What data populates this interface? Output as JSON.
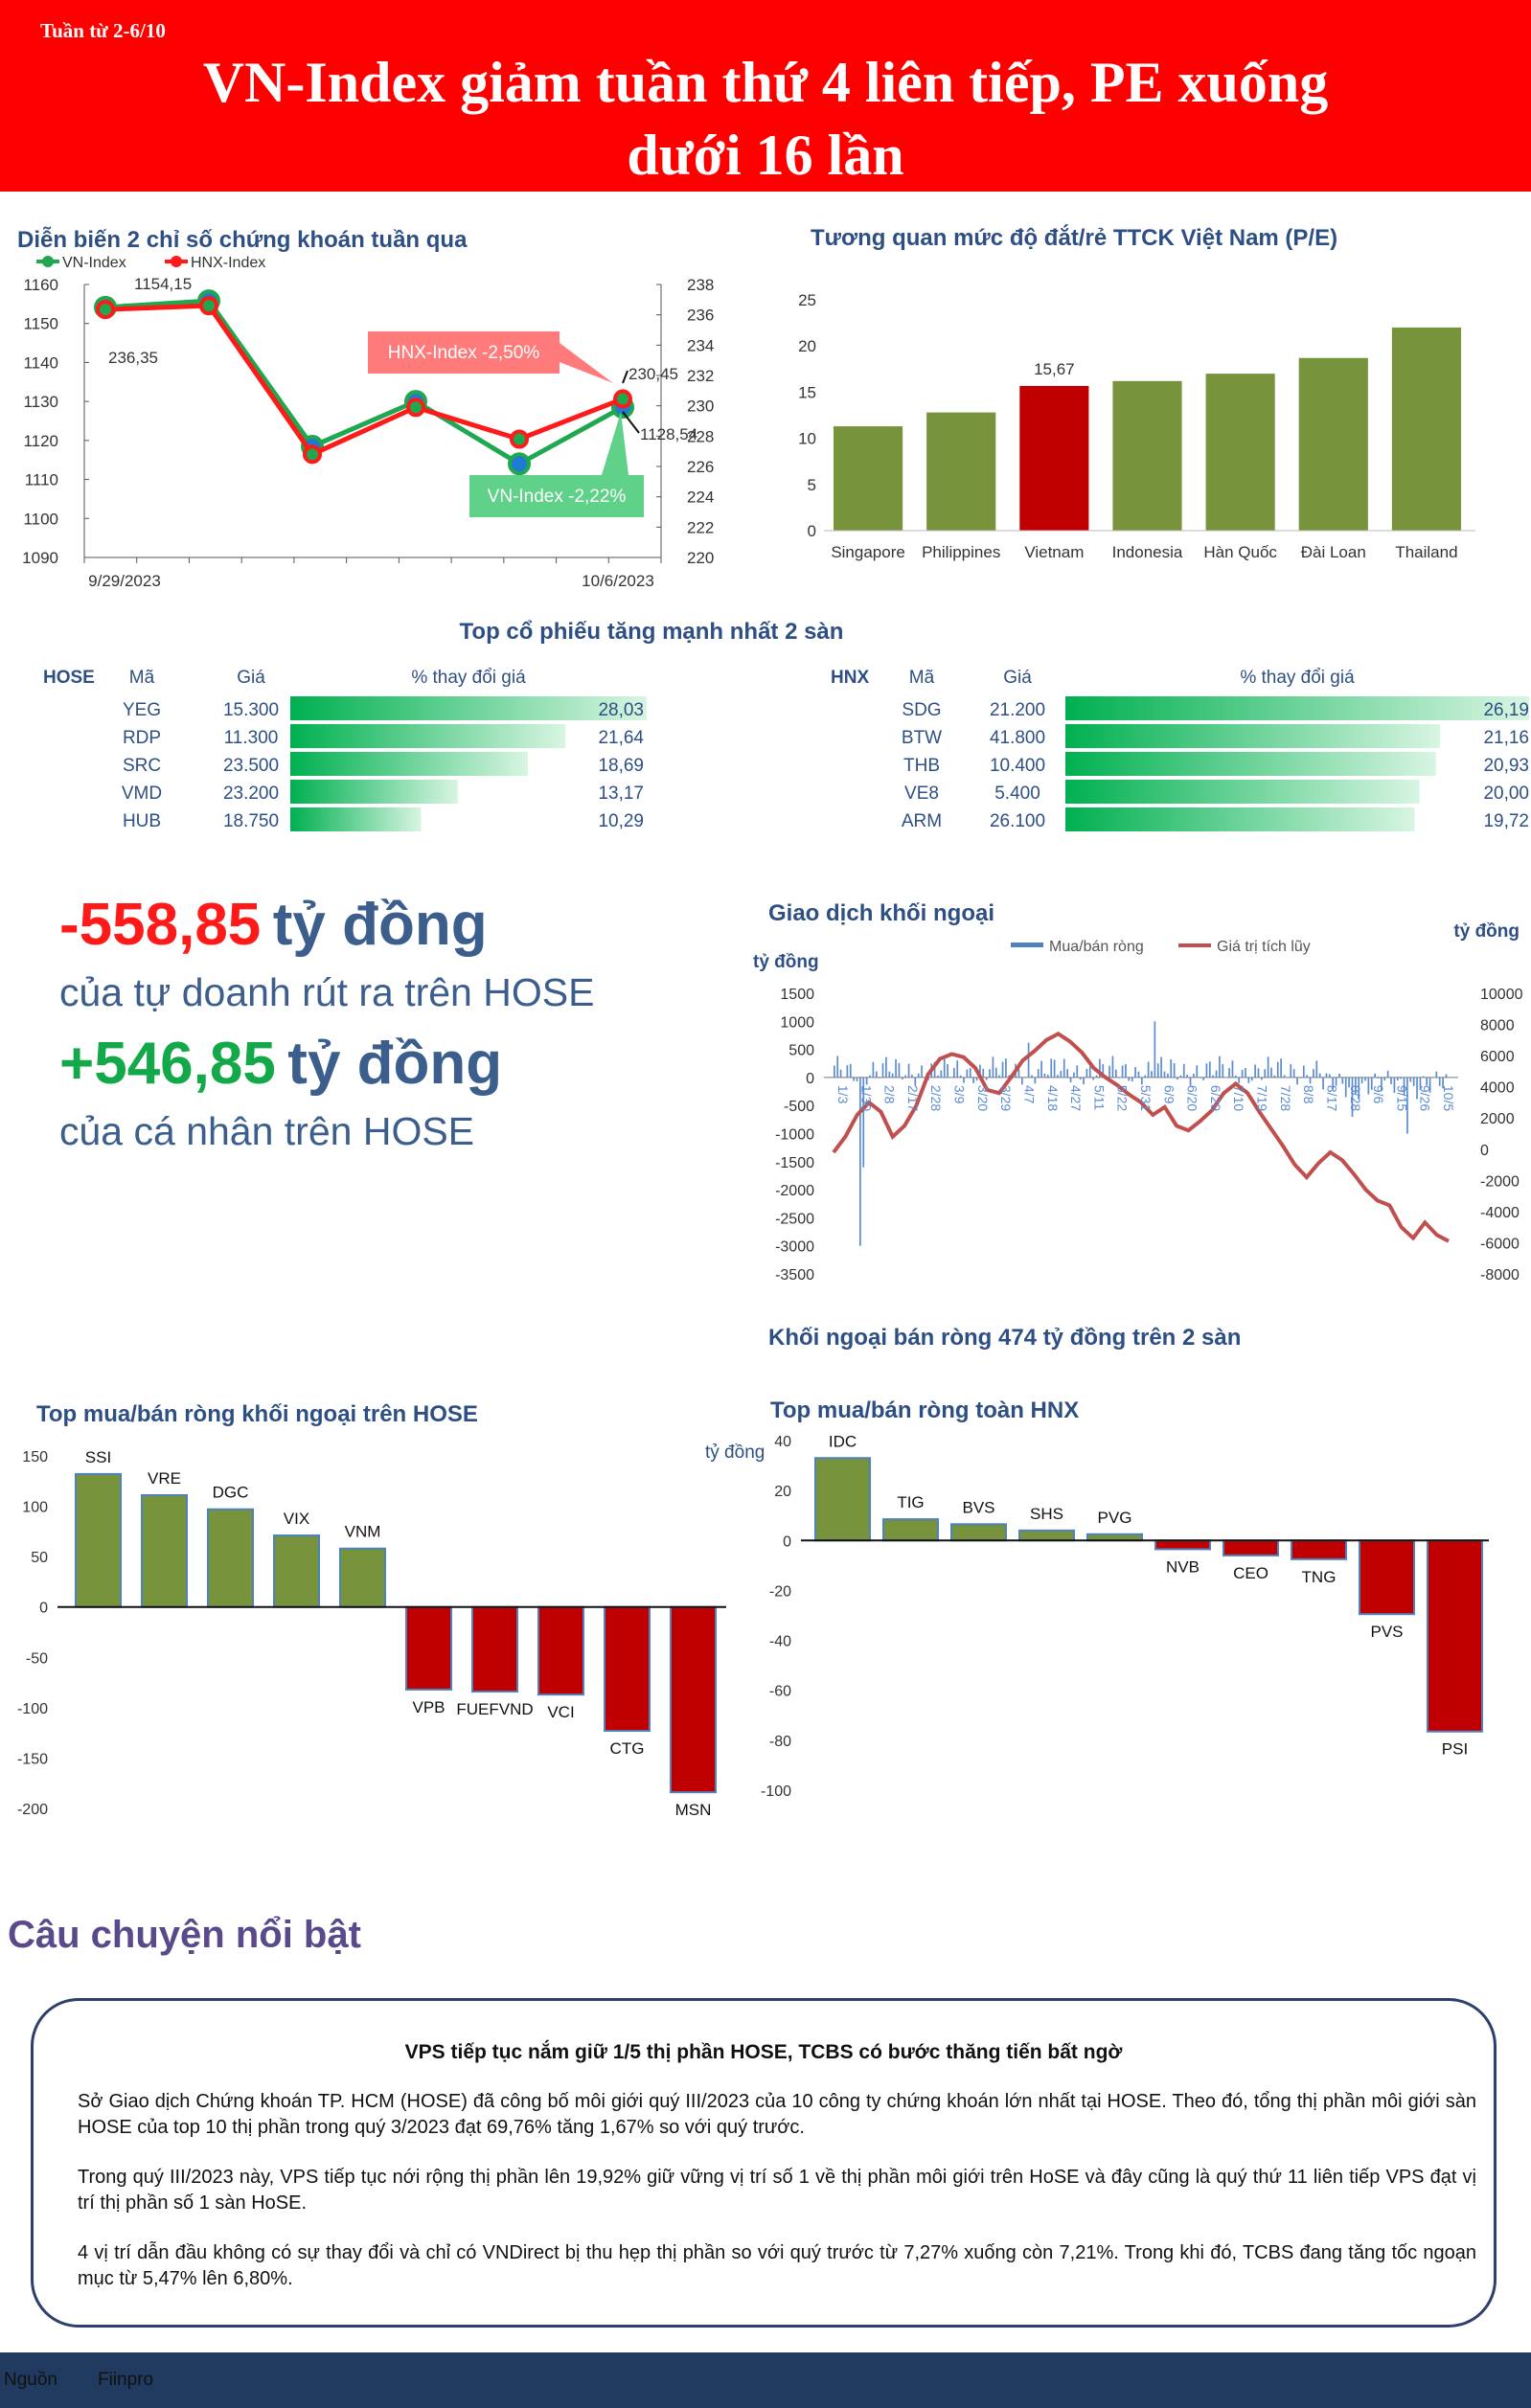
{
  "header": {
    "week": "Tuần từ 2-6/10",
    "headline_line1": "VN-Index giảm tuần thứ 4 liên tiếp, PE xuống",
    "headline_line2": "dưới 16 lần"
  },
  "index_chart": {
    "title": "Diễn biến 2 chỉ số chứng khoán tuần qua",
    "legend": [
      "VN-Index",
      "HNX-Index"
    ],
    "x_labels": [
      "9/29/2023",
      "10/6/2023"
    ],
    "y_left_ticks": [
      "1160",
      "1150",
      "1140",
      "1130",
      "1120",
      "1110",
      "1100",
      "1090"
    ],
    "y_right_ticks": [
      "238",
      "236",
      "234",
      "232",
      "230",
      "228",
      "226",
      "224",
      "222",
      "220"
    ],
    "callouts": {
      "vn_start": "1154,15",
      "hnx_start": "236,35",
      "hnx_end": "230,45",
      "vn_end": "1128,54",
      "hnx_change": "HNX-Index -2,50%",
      "vn_change": "VN-Index -2,22%"
    }
  },
  "pe_title": "Tương quan mức độ đắt/rẻ TTCK Việt Nam (P/E)",
  "top_title": "Top cổ phiếu tăng mạnh nhất 2 sàn",
  "hose_table": {
    "exchange": "HOSE",
    "col_code": "Mã",
    "col_price": "Giá",
    "col_change": "% thay đổi giá",
    "rows": [
      {
        "code": "YEG",
        "price": "15.300",
        "change": "28,03",
        "pct": 28.03
      },
      {
        "code": "RDP",
        "price": "11.300",
        "change": "21,64",
        "pct": 21.64
      },
      {
        "code": "SRC",
        "price": "23.500",
        "change": "18,69",
        "pct": 18.69
      },
      {
        "code": "VMD",
        "price": "23.200",
        "change": "13,17",
        "pct": 13.17
      },
      {
        "code": "HUB",
        "price": "18.750",
        "change": "10,29",
        "pct": 10.29
      }
    ]
  },
  "hnx_table": {
    "exchange": "HNX",
    "col_code": "Mã",
    "col_price": "Giá",
    "col_change": "% thay đổi giá",
    "rows": [
      {
        "code": "SDG",
        "price": "21.200",
        "change": "26,19",
        "pct": 26.19
      },
      {
        "code": "BTW",
        "price": "41.800",
        "change": "21,16",
        "pct": 21.16
      },
      {
        "code": "THB",
        "price": "10.400",
        "change": "20,93",
        "pct": 20.93
      },
      {
        "code": "VE8",
        "price": "5.400",
        "change": "20,00",
        "pct": 20.0
      },
      {
        "code": "ARM",
        "price": "26.100",
        "change": "19,72",
        "pct": 19.72
      }
    ]
  },
  "highlights": {
    "proprietary_value": "-558,85",
    "unit": "tỷ đồng",
    "proprietary_desc": "của tự doanh rút ra trên HOSE",
    "individual_value": "+546,85",
    "individual_desc": "của cá nhân trên HOSE"
  },
  "foreign_chart": {
    "title": "Giao dịch khối ngoại",
    "unit_left": "tỷ đồng",
    "unit_right": "tỷ đồng",
    "legend_bar": "Mua/bán ròng",
    "legend_line": "Giá trị tích lũy",
    "y_left_ticks": [
      "1500",
      "1000",
      "500",
      "0",
      "-500",
      "-1000",
      "-1500",
      "-2000",
      "-2500",
      "-3000",
      "-3500"
    ],
    "y_right_ticks": [
      "10000",
      "8000",
      "6000",
      "4000",
      "2000",
      "0",
      "-2000",
      "-4000",
      "-6000",
      "-8000"
    ],
    "x_ticks": [
      "1/3",
      "1/30",
      "2/8",
      "2/17",
      "2/28",
      "3/9",
      "3/20",
      "3/29",
      "4/7",
      "4/18",
      "4/27",
      "5/11",
      "5/22",
      "5/31",
      "6/9",
      "6/20",
      "6/29",
      "7/10",
      "7/19",
      "7/28",
      "8/8",
      "8/17",
      "8/28",
      "9/6",
      "9/15",
      "9/26",
      "10/5"
    ]
  },
  "foreign_summary": "Khối ngoại bán ròng 474 tỷ đồng trên 2 sàn",
  "hose_foreign_title": "Top mua/bán ròng khối ngoại trên HOSE",
  "hnx_foreign_title": "Top mua/bán ròng toàn HNX",
  "hnx_foreign_unit": "tỷ đồng",
  "story": {
    "section_title": "Câu chuyện nổi bật",
    "title": "VPS tiếp tục nắm giữ 1/5 thị phần HOSE, TCBS có bước thăng tiến bất ngờ",
    "p1": "Sở Giao dịch Chứng khoán TP. HCM (HOSE) đã công bố môi giới quý III/2023 của 10 công ty chứng khoán lớn nhất tại HOSE. Theo đó, tổng thị phần môi giới sàn HOSE của top 10 thị phần trong quý 3/2023 đạt 69,76% tăng 1,67% so với quý trước.",
    "p2": "Trong quý III/2023 này, VPS tiếp tục nới rộng thị phần lên 19,92% giữ vững vị trí số 1 về thị phần môi giới trên HoSE và đây cũng là quý thứ 11 liên tiếp VPS đạt vị trí thị phần số 1 sàn HoSE.",
    "p3": "4 vị trí dẫn đầu không có sự thay đổi và chỉ có VNDirect bị thu hẹp thị phần so với quý trước từ 7,27% xuống còn 7,21%. Trong khi đó, TCBS đang tăng tốc ngoạn mục từ 5,47% lên 6,80%."
  },
  "footer": {
    "source_label": "Nguồn",
    "source": "Fiinpro"
  },
  "colors": {
    "header_red": "#ff0000",
    "vn_green": "#1fa84f",
    "hnx_red": "#ff1a1a",
    "bar_green": "#77933c",
    "bar_red": "#c00000",
    "title_blue": "#2e4f83",
    "footer_navy": "#213a5f"
  },
  "chart_data": [
    {
      "type": "line",
      "title": "Diễn biến 2 chỉ số chứng khoán tuần qua",
      "x": [
        "9/29/2023",
        "",
        "",
        "",
        "",
        "10/6/2023"
      ],
      "series": [
        {
          "name": "VN-Index",
          "axis": "left",
          "values": [
            1154.15,
            1155.8,
            1118.5,
            1130.0,
            1114.0,
            1128.54
          ]
        },
        {
          "name": "HNX-Index",
          "axis": "right",
          "values": [
            236.35,
            236.6,
            226.8,
            229.9,
            227.8,
            230.45
          ]
        }
      ],
      "ylim_left": [
        1090,
        1160
      ],
      "ylim_right": [
        220,
        238
      ]
    },
    {
      "type": "bar",
      "title": "Tương quan mức độ đắt/rẻ TTCK Việt Nam (P/E)",
      "categories": [
        "Singapore",
        "Philippines",
        "Vietnam",
        "Indonesia",
        "Hàn Quốc",
        "Đài Loan",
        "Thailand"
      ],
      "values": [
        11.3,
        12.8,
        15.67,
        16.2,
        17.0,
        18.7,
        22.0
      ],
      "data_labels": [
        "",
        "",
        "15,67",
        "",
        "",
        "",
        ""
      ],
      "highlight": "Vietnam",
      "ylim": [
        0,
        25
      ],
      "yticks": [
        0,
        5,
        10,
        15,
        20,
        25
      ]
    },
    {
      "type": "bar",
      "title": "Giao dịch khối ngoại",
      "series_name": "Mua/bán ròng",
      "ylim": [
        -3500,
        1500
      ],
      "note": "daily net foreign buy/sell, 1/3 to 10/5 (approximate)"
    },
    {
      "type": "line",
      "title": "Giao dịch khối ngoại",
      "series_name": "Giá trị tích lũy",
      "ylim": [
        -8000,
        10000
      ],
      "values": [
        -200,
        800,
        2200,
        3000,
        2400,
        800,
        1500,
        2800,
        4800,
        5800,
        6100,
        5900,
        5200,
        3800,
        3600,
        4600,
        5700,
        6300,
        7000,
        7400,
        6900,
        6200,
        5200,
        4600,
        4100,
        3500,
        3000,
        2200,
        2700,
        1500,
        1200,
        1800,
        2500,
        3600,
        4200,
        3600,
        2400,
        1300,
        200,
        -1000,
        -1800,
        -900,
        -200,
        -700,
        -1600,
        -2600,
        -3300,
        -3600,
        -5000,
        -5700,
        -4700,
        -5500,
        -5900
      ]
    },
    {
      "type": "bar",
      "title": "Top mua/bán ròng khối ngoại trên HOSE",
      "categories": [
        "SSI",
        "VRE",
        "DGC",
        "VIX",
        "VNM",
        "VPB",
        "FUEFVND",
        "VCI",
        "CTG",
        "MSN"
      ],
      "values": [
        132,
        111,
        97,
        71,
        58,
        -82,
        -84,
        -87,
        -123,
        -184
      ],
      "ylim": [
        -200,
        150
      ],
      "yticks": [
        150,
        100,
        50,
        0,
        -50,
        -100,
        -150,
        -200
      ]
    },
    {
      "type": "bar",
      "title": "Top mua/bán ròng toàn HNX",
      "ylabel": "tỷ đồng",
      "categories": [
        "IDC",
        "TIG",
        "BVS",
        "SHS",
        "PVG",
        "NVB",
        "CEO",
        "TNG",
        "PVS",
        "PSI"
      ],
      "values": [
        33,
        8.5,
        6.5,
        4,
        2.5,
        -3.5,
        -6,
        -7.5,
        -29.5,
        -76.5
      ],
      "ylim": [
        -100,
        40
      ],
      "yticks": [
        40,
        20,
        0,
        -20,
        -40,
        -60,
        -80,
        -100
      ]
    }
  ]
}
